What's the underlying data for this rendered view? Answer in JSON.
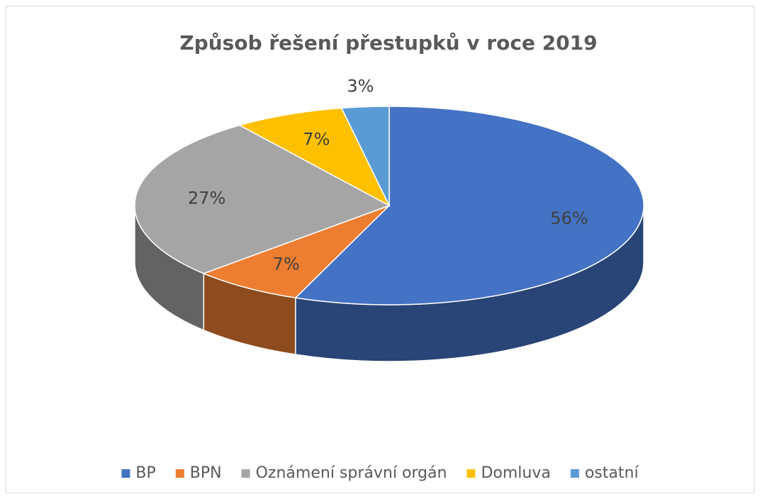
{
  "chart_data": {
    "type": "pie",
    "title": "Způsob řešení přestupků v roce 2019",
    "categories": [
      "BP",
      "BPN",
      "Oznámení správní orgán",
      "Domluva",
      "ostatní"
    ],
    "values": [
      56,
      7,
      27,
      7,
      3
    ],
    "value_labels": [
      "56%",
      "7%",
      "27%",
      "7%",
      "3%"
    ],
    "colors": [
      "#4472c4",
      "#ed7d31",
      "#a5a5a5",
      "#ffc000",
      "#5b9bd5"
    ],
    "legend": "bottom"
  }
}
